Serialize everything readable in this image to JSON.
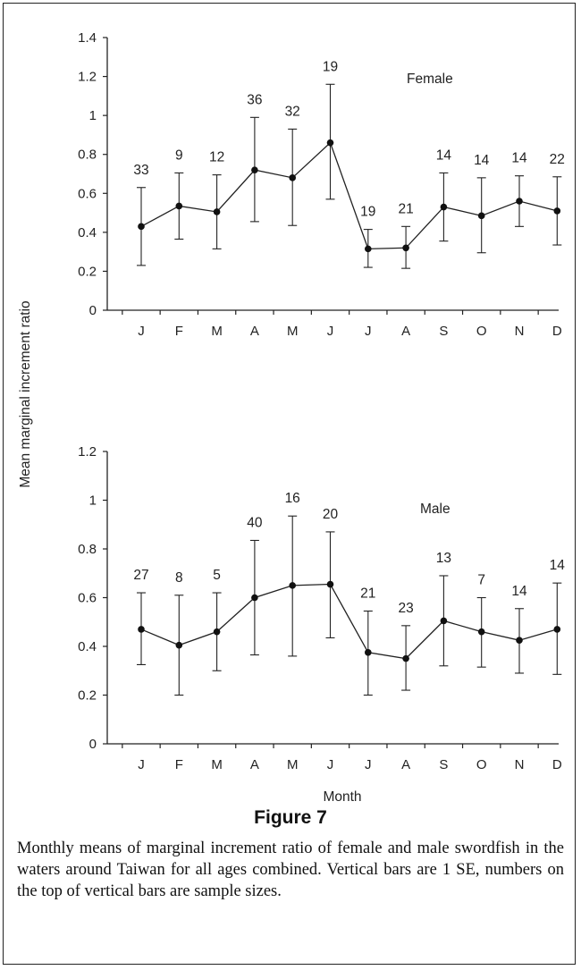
{
  "figure": {
    "title": "Figure 7",
    "caption": "Monthly means of marginal increment ratio of female and male swordfish in the waters around Taiwan for all ages combined. Vertical bars are 1 SE, numbers on the top of vertical bars are sample sizes."
  },
  "chart_data": [
    {
      "type": "line",
      "panel_label": "Female",
      "ylabel": "Mean marginal increment ratio",
      "xlabel": "",
      "ylim": [
        0,
        1.4
      ],
      "yticks": [
        "0",
        "0.2",
        "0.4",
        "0.6",
        "0.8",
        "1",
        "1.2",
        "1.4"
      ],
      "categories": [
        "J",
        "F",
        "M",
        "A",
        "M",
        "J",
        "J",
        "A",
        "S",
        "O",
        "N",
        "D"
      ],
      "values": [
        0.43,
        0.535,
        0.505,
        0.72,
        0.68,
        0.86,
        0.315,
        0.32,
        0.53,
        0.485,
        0.56,
        0.51
      ],
      "se_lower": [
        0.23,
        0.365,
        0.315,
        0.455,
        0.435,
        0.57,
        0.22,
        0.215,
        0.355,
        0.295,
        0.43,
        0.335
      ],
      "se_upper": [
        0.63,
        0.705,
        0.695,
        0.99,
        0.93,
        1.16,
        0.415,
        0.43,
        0.705,
        0.68,
        0.69,
        0.685
      ],
      "sample_sizes": [
        "33",
        "9",
        "12",
        "36",
        "32",
        "19",
        "19",
        "21",
        "14",
        "14",
        "14",
        "22"
      ]
    },
    {
      "type": "line",
      "panel_label": "Male",
      "ylabel": "",
      "xlabel": "Month",
      "ylim": [
        0,
        1.2
      ],
      "yticks": [
        "0",
        "0.2",
        "0.4",
        "0.6",
        "0.8",
        "1",
        "1.2"
      ],
      "categories": [
        "J",
        "F",
        "M",
        "A",
        "M",
        "J",
        "J",
        "A",
        "S",
        "O",
        "N",
        "D"
      ],
      "values": [
        0.47,
        0.405,
        0.46,
        0.6,
        0.65,
        0.655,
        0.375,
        0.35,
        0.505,
        0.46,
        0.425,
        0.47
      ],
      "se_lower": [
        0.325,
        0.2,
        0.3,
        0.365,
        0.36,
        0.435,
        0.2,
        0.22,
        0.32,
        0.315,
        0.29,
        0.285
      ],
      "se_upper": [
        0.62,
        0.61,
        0.62,
        0.835,
        0.935,
        0.87,
        0.545,
        0.485,
        0.69,
        0.6,
        0.555,
        0.66
      ],
      "sample_sizes": [
        "27",
        "8",
        "5",
        "40",
        "16",
        "20",
        "21",
        "23",
        "13",
        "7",
        "14",
        "14"
      ]
    }
  ]
}
